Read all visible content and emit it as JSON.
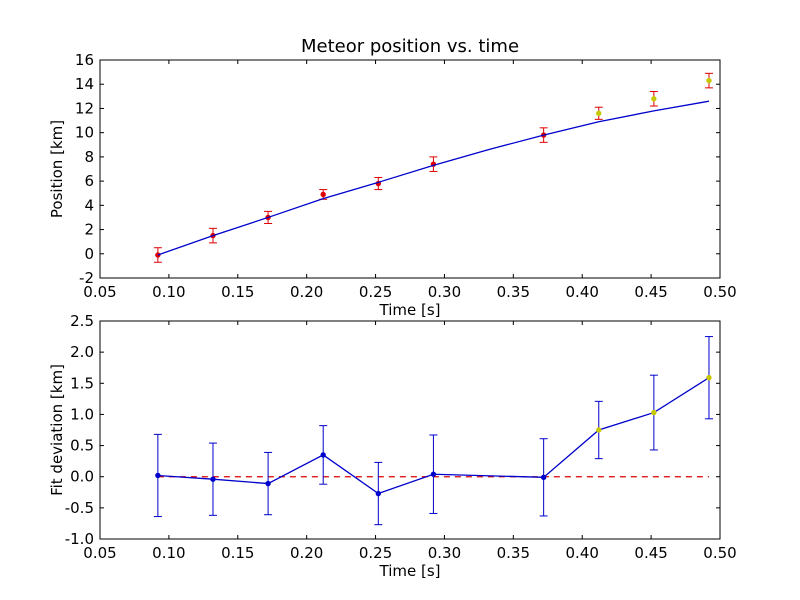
{
  "chart_data": [
    {
      "type": "line",
      "title": "Meteor position vs. time",
      "xlabel": "Time [s]",
      "ylabel": "Position [km]",
      "xlim": [
        0.05,
        0.5
      ],
      "ylim": [
        -2,
        16
      ],
      "xticks": [
        "0.05",
        "0.10",
        "0.15",
        "0.20",
        "0.25",
        "0.30",
        "0.35",
        "0.40",
        "0.45",
        "0.50"
      ],
      "yticks": [
        "-2",
        "0",
        "2",
        "4",
        "6",
        "8",
        "10",
        "12",
        "14",
        "16"
      ],
      "grid": false,
      "legend": "none",
      "series": [
        {
          "kind": "errorbar-points",
          "color": "#dd0000",
          "errorbar_color": "#dd0000",
          "x": [
            0.092,
            0.132,
            0.172,
            0.212,
            0.252,
            0.292,
            0.372
          ],
          "y": [
            -0.1,
            1.5,
            3.0,
            4.9,
            5.8,
            7.4,
            9.8
          ],
          "yerr": [
            0.6,
            0.6,
            0.5,
            0.4,
            0.5,
            0.6,
            0.6
          ]
        },
        {
          "kind": "errorbar-points",
          "color": "#c8c800",
          "errorbar_color": "#dd0000",
          "x": [
            0.412,
            0.452,
            0.492
          ],
          "y": [
            11.6,
            12.8,
            14.3
          ],
          "yerr": [
            0.5,
            0.6,
            0.6
          ]
        },
        {
          "kind": "fit-line",
          "color": "#0000cc",
          "x": [
            0.092,
            0.132,
            0.172,
            0.212,
            0.252,
            0.292,
            0.332,
            0.372,
            0.412,
            0.452,
            0.492
          ],
          "y": [
            -0.1,
            1.5,
            3.0,
            4.55,
            5.9,
            7.3,
            8.6,
            9.8,
            10.9,
            11.8,
            12.6
          ]
        }
      ]
    },
    {
      "type": "line",
      "title": "",
      "xlabel": "Time [s]",
      "ylabel": "Fit deviation [km]",
      "xlim": [
        0.05,
        0.5
      ],
      "ylim": [
        -1.0,
        2.5
      ],
      "xticks": [
        "0.05",
        "0.10",
        "0.15",
        "0.20",
        "0.25",
        "0.30",
        "0.35",
        "0.40",
        "0.45",
        "0.50"
      ],
      "yticks": [
        "-1.0",
        "-0.5",
        "0.0",
        "0.5",
        "1.0",
        "1.5",
        "2.0",
        "2.5"
      ],
      "grid": false,
      "legend": "none",
      "series": [
        {
          "kind": "reference-line",
          "color": "#dd0000",
          "style": "dashed",
          "x": [
            0.092,
            0.492
          ],
          "y": [
            0.0,
            0.0
          ]
        },
        {
          "kind": "errorbar-line",
          "color": "#0000cc",
          "errorbar_color": "#0000cc",
          "marker_colors": [
            "#0000cc",
            "#0000cc",
            "#0000cc",
            "#0000cc",
            "#0000cc",
            "#0000cc",
            "#0000cc",
            "#c8c800",
            "#c8c800",
            "#c8c800"
          ],
          "x": [
            0.092,
            0.132,
            0.172,
            0.212,
            0.252,
            0.292,
            0.372,
            0.412,
            0.452,
            0.492
          ],
          "y": [
            0.02,
            -0.04,
            -0.11,
            0.35,
            -0.27,
            0.04,
            -0.01,
            0.75,
            1.03,
            1.59
          ],
          "yerr": [
            0.66,
            0.58,
            0.5,
            0.47,
            0.5,
            0.63,
            0.62,
            0.46,
            0.6,
            0.66
          ]
        }
      ]
    }
  ]
}
